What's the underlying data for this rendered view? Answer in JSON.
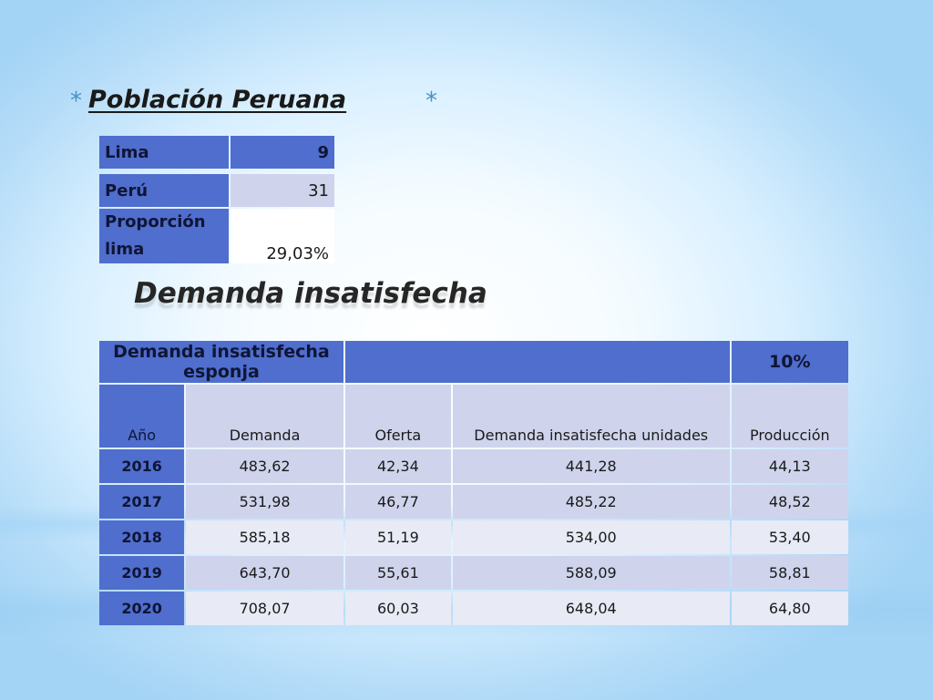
{
  "title": "Población Peruana",
  "bullet_glyph": "*",
  "population_table": [
    {
      "label": "Lima",
      "value": "9"
    },
    {
      "label": "Perú",
      "value": "31"
    },
    {
      "label": "Proporción lima",
      "value": "29,03%"
    }
  ],
  "subtitle": "Demanda insatisfecha",
  "demand_table": {
    "header_label": "Demanda insatisfecha esponja",
    "header_blank": "",
    "header_percent": "10%",
    "columns": [
      "Año",
      "Demanda",
      "Oferta",
      "Demanda insatisfecha unidades",
      "Producción"
    ],
    "rows": [
      [
        "2016",
        "483,62",
        "42,34",
        "441,28",
        "44,13"
      ],
      [
        "2017",
        "531,98",
        "46,77",
        "485,22",
        "48,52"
      ],
      [
        "2018",
        "585,18",
        "51,19",
        "534,00",
        "53,40"
      ],
      [
        "2019",
        "643,70",
        "55,61",
        "588,09",
        "58,81"
      ],
      [
        "2020",
        "708,07",
        "60,03",
        "648,04",
        "64,80"
      ]
    ]
  },
  "colors": {
    "table_header": "#4f6ecd",
    "table_band_1": "#cfd4ec",
    "table_band_2": "#e8eaf5",
    "bullet": "#4a8fc4"
  }
}
